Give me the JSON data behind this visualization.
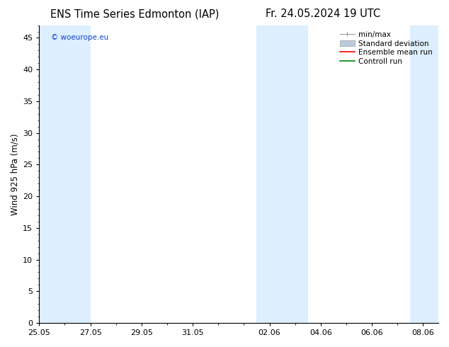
{
  "title_left": "ENS Time Series Edmonton (IAP)",
  "title_right": "Fr. 24.05.2024 19 UTC",
  "ylabel": "Wind 925 hPa (m/s)",
  "ylim": [
    0,
    47
  ],
  "yticks": [
    0,
    5,
    10,
    15,
    20,
    25,
    30,
    35,
    40,
    45
  ],
  "x_tick_labels": [
    "25.05",
    "27.05",
    "29.05",
    "31.05",
    "02.06",
    "04.06",
    "06.06",
    "08.06"
  ],
  "x_tick_positions": [
    0,
    2,
    4,
    6,
    9,
    11,
    13,
    15
  ],
  "shaded_regions": [
    [
      0.0,
      1.0
    ],
    [
      1.0,
      2.0
    ],
    [
      8.5,
      10.5
    ],
    [
      14.5,
      15.6
    ]
  ],
  "background_color": "#ffffff",
  "band_color": "#ddeeff",
  "legend_items": [
    {
      "label": "min/max"
    },
    {
      "label": "Standard deviation"
    },
    {
      "label": "Ensemble mean run"
    },
    {
      "label": "Controll run"
    }
  ],
  "minmax_color": "#999999",
  "std_color": "#bbccdd",
  "ens_color": "#ff0000",
  "ctrl_color": "#008800",
  "watermark_text": "© woeurope.eu",
  "watermark_color": "#1144cc",
  "title_fontsize": 10.5,
  "ylabel_fontsize": 8.5,
  "tick_fontsize": 8,
  "legend_fontsize": 7.5,
  "xlim": [
    0,
    15.6
  ]
}
